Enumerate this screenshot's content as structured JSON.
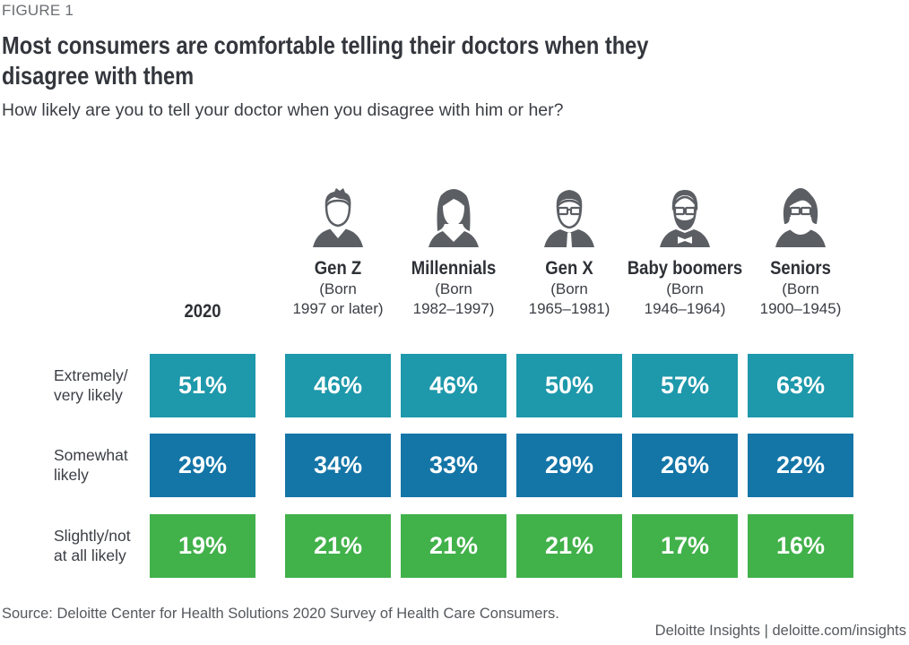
{
  "figure_label": "FIGURE 1",
  "title_lines": [
    "Most consumers are comfortable telling their doctors when they",
    "disagree with them"
  ],
  "subtitle": "How likely are you to tell your doctor when you disagree with him or her?",
  "colors": {
    "extremely": "#1e98ab",
    "somewhat": "#1475a7",
    "slightly": "#41b14a",
    "icon": "#5b5f64"
  },
  "chart_data": {
    "type": "table",
    "title": "Most consumers are comfortable telling their doctors when they disagree with them",
    "subtitle": "How likely are you to tell your doctor when you disagree with him or her?",
    "columns": [
      {
        "name": "2020",
        "sub1": "",
        "sub2": "",
        "icon": ""
      },
      {
        "name": "Gen Z",
        "sub1": "(Born",
        "sub2": "1997 or later)",
        "icon": "young-man-icon"
      },
      {
        "name": "Millennials",
        "sub1": "(Born",
        "sub2": "1982–1997)",
        "icon": "young-woman-icon"
      },
      {
        "name": "Gen X",
        "sub1": "(Born",
        "sub2": "1965–1981)",
        "icon": "man-glasses-tie-icon"
      },
      {
        "name": "Baby boomers",
        "sub1": "(Born",
        "sub2": "1946–1964)",
        "icon": "man-beard-bowtie-icon"
      },
      {
        "name": "Seniors",
        "sub1": "(Born",
        "sub2": "1900–1945)",
        "icon": "woman-glasses-pearls-icon"
      }
    ],
    "rows": [
      {
        "label_lines": [
          "Extremely/",
          "very likely"
        ],
        "key": "extremely",
        "values": [
          51,
          46,
          46,
          50,
          57,
          63
        ],
        "display": [
          "51%",
          "46%",
          "46%",
          "50%",
          "57%",
          "63%"
        ]
      },
      {
        "label_lines": [
          "Somewhat",
          "likely"
        ],
        "key": "somewhat",
        "values": [
          29,
          34,
          33,
          29,
          26,
          22
        ],
        "display": [
          "29%",
          "34%",
          "33%",
          "29%",
          "26%",
          "22%"
        ]
      },
      {
        "label_lines": [
          "Slightly/not",
          "at all likely"
        ],
        "key": "slightly",
        "values": [
          19,
          21,
          21,
          21,
          17,
          16
        ],
        "display": [
          "19%",
          "21%",
          "21%",
          "21%",
          "17%",
          "16%"
        ]
      }
    ],
    "unit": "%"
  },
  "source": "Source: Deloitte Center for Health Solutions 2020 Survey of Health Care Consumers.",
  "credit": "Deloitte Insights | deloitte.com/insights"
}
